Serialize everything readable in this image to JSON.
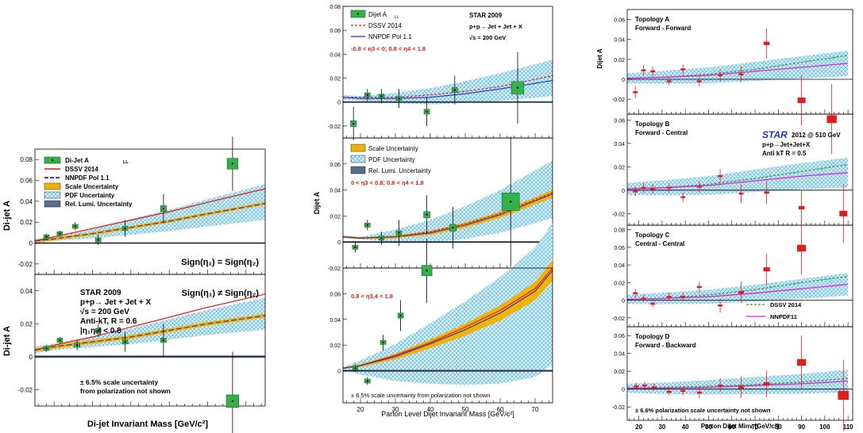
{
  "colors": {
    "dssv": "#e31a1c",
    "nnpdf": "#1f2fd0",
    "scale": "#f2b300",
    "pdf": "#9fd6ef",
    "relumi": "#5b6b8a",
    "data_green": "#34b24a",
    "data_red": "#e21d1d",
    "dssv_green": "#2f9f2f",
    "nnpdf_magenta": "#e020e0",
    "star_blue": "#2233cc"
  },
  "panel1": {
    "x_axis_label": "Di-jet Invariant Mass [GeV/c²]",
    "y_axis_label": "Di-jet A",
    "y_axis_sub": "LL",
    "legend": [
      "Di-Jet A",
      "DSSV 2014",
      "NNPDF Pol 1.1",
      "Scale Uncertainty",
      "PDF Uncertainty",
      "Rel. Lumi. Uncertainty"
    ],
    "legend_sub": "LL",
    "top_label": "Sign(η₁) = Sign(η₂)",
    "bottom_label": "Sign(η₁) ≠ Sign(η₂)",
    "star_lines": [
      "STAR 2009",
      "p+p→ Jet + Jet + X",
      "√s = 200 GeV",
      "Anti-kT, R = 0.6",
      "|η₁η₂| < 0.8"
    ],
    "note_lines": [
      "± 6.5% scale uncertainty",
      "from polarization not shown"
    ]
  },
  "panel2": {
    "x_axis_label": "Parton Level Dijet Invariant Mass [GeV/c²]",
    "y_axis_label": "Dijet A",
    "y_axis_sub": "LL",
    "legend_top": [
      "Dijet A",
      "DSSV 2014",
      "NNPDF Pol 1.1"
    ],
    "legend_top_sub": "LL",
    "star_lines": [
      "STAR 2009",
      "p+p→ Jet + Jet + X",
      "√s = 200 GeV"
    ],
    "eta_labels": [
      "-0.8 < η3 < 0; 0.8 < η4 < 1.8",
      "0 < η3 < 0.8; 0.8 < η4 < 1.8",
      "0.8 < η3,4 < 1.8"
    ],
    "legend_mid": [
      "Scale Uncertainty",
      "PDF Uncertainty",
      "Rel. Lumi. Uncertainty"
    ],
    "note": "± 6.5% scale uncertainty from polarization not shown"
  },
  "panel3": {
    "x_axis_label": "Parton Dijet Minv [GeV/c²]",
    "y_axis_label": "Dijet A",
    "y_axis_sub": "LL",
    "topologies": [
      [
        "Topology A",
        "Forward - Forward"
      ],
      [
        "Topology B",
        "Forward - Central"
      ],
      [
        "Topology C",
        "Central - Central"
      ],
      [
        "Topology D",
        "Forward - Backward"
      ]
    ],
    "star_logo": "STAR",
    "star_lines": [
      "2012 @ 510 GeV",
      "p+p→Jet+Jet+X",
      "Anti kT R = 0.5"
    ],
    "legend": [
      "DSSV 2014",
      "NNPDF11"
    ],
    "note": "± 6.6% polarization scale uncertainty not shown"
  },
  "chart_data": [
    {
      "type": "scatter",
      "title": "Di-jet ALL, Sign(η1) = Sign(η2)",
      "xlabel": "Di-jet Invariant Mass [GeV/c²]",
      "ylabel": "Di-jet ALL",
      "xlim": [
        15,
        75
      ],
      "ylim": [
        -0.03,
        0.09
      ],
      "xticks": [
        20,
        30,
        40,
        50,
        60,
        70
      ],
      "yticks": [
        -0.02,
        0,
        0.02,
        0.04,
        0.06,
        0.08
      ],
      "series": [
        {
          "name": "Di-Jet ALL",
          "x": [
            18,
            21.5,
            25.5,
            31.5,
            38.5,
            48.5,
            66.5
          ],
          "y": [
            0.006,
            0.009,
            0.016,
            0.003,
            0.014,
            0.033,
            0.076
          ],
          "yerr": [
            0.003,
            0.003,
            0.004,
            0.005,
            0.008,
            0.014,
            0.026
          ]
        },
        {
          "name": "DSSV 2014",
          "x": [
            15,
            20,
            30,
            40,
            50,
            60,
            75
          ],
          "y": [
            0.002,
            0.006,
            0.014,
            0.022,
            0.03,
            0.039,
            0.052
          ]
        },
        {
          "name": "NNPDF Pol 1.1",
          "x": [
            15,
            20,
            30,
            40,
            50,
            60,
            75
          ],
          "y": [
            0.002,
            0.004,
            0.009,
            0.015,
            0.021,
            0.028,
            0.038
          ]
        }
      ]
    },
    {
      "type": "scatter",
      "title": "Di-jet ALL, Sign(η1) ≠ Sign(η2)",
      "xlim": [
        15,
        75
      ],
      "ylim": [
        -0.03,
        0.05
      ],
      "yticks": [
        -0.02,
        0,
        0.02,
        0.04
      ],
      "series": [
        {
          "name": "Di-Jet ALL",
          "x": [
            18,
            21.5,
            26,
            31.5,
            38.5,
            48.5,
            66.5
          ],
          "y": [
            0.005,
            0.01,
            0.007,
            0.016,
            0.009,
            0.01,
            -0.027
          ],
          "yerr": [
            0.002,
            0.002,
            0.003,
            0.004,
            0.006,
            0.01,
            0.03
          ]
        },
        {
          "name": "DSSV 2014",
          "x": [
            15,
            20,
            30,
            40,
            50,
            60,
            75
          ],
          "y": [
            0.004,
            0.007,
            0.012,
            0.018,
            0.024,
            0.03,
            0.038
          ]
        },
        {
          "name": "NNPDF Pol 1.1",
          "x": [
            15,
            20,
            30,
            40,
            50,
            60,
            75
          ],
          "y": [
            0.004,
            0.006,
            0.009,
            0.012,
            0.016,
            0.02,
            0.025
          ]
        }
      ]
    },
    {
      "type": "scatter",
      "title": "-0.8 < η3 < 0; 0.8 < η4 < 1.8",
      "xlabel": "Parton Level Dijet Invariant Mass [GeV/c²]",
      "ylabel": "Dijet ALL",
      "xlim": [
        15,
        75
      ],
      "ylim": [
        -0.03,
        0.08
      ],
      "yticks": [
        -0.02,
        0,
        0.02,
        0.04,
        0.06,
        0.08
      ],
      "series": [
        {
          "name": "Dijet ALL",
          "x": [
            18,
            22,
            26,
            31,
            39,
            47,
            65
          ],
          "y": [
            -0.018,
            0.006,
            0.005,
            0.003,
            -0.008,
            0.01,
            0.012
          ],
          "yerr": [
            0.014,
            0.005,
            0.006,
            0.008,
            0.012,
            0.012,
            0.03
          ]
        },
        {
          "name": "DSSV 2014",
          "x": [
            15,
            20,
            30,
            40,
            50,
            60,
            75
          ],
          "y": [
            0.004,
            0.004,
            0.004,
            0.006,
            0.009,
            0.013,
            0.022
          ]
        },
        {
          "name": "NNPDF Pol 1.1",
          "x": [
            15,
            20,
            30,
            40,
            50,
            60,
            75
          ],
          "y": [
            0.004,
            0.003,
            0.003,
            0.004,
            0.007,
            0.011,
            0.018
          ]
        }
      ]
    },
    {
      "type": "scatter",
      "title": "0 < η3 < 0.8; 0.8 < η4 < 1.8",
      "xlim": [
        15,
        75
      ],
      "ylim": [
        -0.02,
        0.08
      ],
      "yticks": [
        -0.02,
        0,
        0.02,
        0.04,
        0.06
      ],
      "series": [
        {
          "name": "Dijet ALL",
          "x": [
            18.5,
            22,
            26,
            31,
            39,
            46.5,
            63
          ],
          "y": [
            -0.004,
            0.013,
            0.003,
            0.007,
            0.021,
            0.011,
            0.031
          ],
          "yerr": [
            0.004,
            0.004,
            0.005,
            0.01,
            0.015,
            0.016,
            0.05
          ]
        },
        {
          "name": "DSSV 2014",
          "x": [
            15,
            20,
            30,
            40,
            50,
            60,
            75
          ],
          "y": [
            0.004,
            0.003,
            0.004,
            0.008,
            0.014,
            0.022,
            0.038
          ]
        },
        {
          "name": "NNPDF Pol 1.1",
          "x": [
            15,
            20,
            30,
            40,
            50,
            60,
            75
          ],
          "y": [
            0.004,
            0.003,
            0.004,
            0.007,
            0.013,
            0.021,
            0.037
          ]
        }
      ]
    },
    {
      "type": "scatter",
      "title": "0.8 < η3,4 < 1.8",
      "xlim": [
        15,
        75
      ],
      "ylim": [
        -0.025,
        0.08
      ],
      "xticks": [
        20,
        30,
        40,
        50,
        60,
        70
      ],
      "yticks": [
        0,
        0.02,
        0.04,
        0.06
      ],
      "series": [
        {
          "name": "Dijet ALL",
          "x": [
            18.5,
            22,
            26.5,
            31.5,
            39
          ],
          "y": [
            0.002,
            -0.008,
            0.022,
            0.043,
            0.078
          ],
          "yerr": [
            0.003,
            0.003,
            0.006,
            0.012,
            0.025
          ]
        },
        {
          "name": "DSSV 2014",
          "x": [
            15,
            20,
            30,
            40,
            50,
            60,
            70,
            75
          ],
          "y": [
            0.002,
            0.004,
            0.012,
            0.022,
            0.034,
            0.047,
            0.064,
            0.08
          ]
        },
        {
          "name": "NNPDF Pol 1.1",
          "x": [
            15,
            20,
            30,
            40,
            50,
            60,
            70,
            75
          ],
          "y": [
            0.002,
            0.004,
            0.011,
            0.021,
            0.032,
            0.045,
            0.062,
            0.078
          ]
        }
      ]
    },
    {
      "type": "scatter",
      "title": "Topology A, Forward - Forward",
      "xlabel": "Parton Dijet Minv [GeV/c²]",
      "ylabel": "Dijet ALL",
      "xlim": [
        15,
        112
      ],
      "ylim": [
        -0.035,
        0.07
      ],
      "yticks": [
        -0.02,
        0,
        0.02,
        0.04,
        0.06
      ],
      "series": [
        {
          "name": "Data",
          "x": [
            18.5,
            22,
            26,
            33,
            39,
            46,
            55,
            64,
            75,
            90,
            103
          ],
          "y": [
            -0.013,
            0.009,
            0.008,
            -0.002,
            0.01,
            -0.002,
            0.004,
            0.005,
            0.036,
            -0.021,
            -0.04
          ],
          "yerr": [
            0.006,
            0.005,
            0.005,
            0.004,
            0.005,
            0.005,
            0.006,
            0.008,
            0.015,
            0.025,
            0.035
          ]
        },
        {
          "name": "DSSV 2014",
          "x": [
            15,
            30,
            50,
            70,
            90,
            110
          ],
          "y": [
            0.001,
            0.002,
            0.005,
            0.01,
            0.017,
            0.024
          ]
        },
        {
          "name": "NNPDF11",
          "x": [
            15,
            30,
            50,
            70,
            90,
            110
          ],
          "y": [
            0.001,
            0.002,
            0.004,
            0.008,
            0.012,
            0.016
          ]
        }
      ]
    },
    {
      "type": "scatter",
      "title": "Topology B, Forward - Central",
      "xlim": [
        15,
        112
      ],
      "ylim": [
        -0.03,
        0.065
      ],
      "yticks": [
        -0.02,
        0,
        0.02,
        0.04,
        0.06
      ],
      "series": [
        {
          "name": "Data",
          "x": [
            18.5,
            22,
            26,
            33,
            39,
            46,
            55,
            64,
            75,
            90,
            108
          ],
          "y": [
            -0.001,
            0.002,
            0.001,
            0.002,
            -0.006,
            0.003,
            0.012,
            -0.003,
            -0.002,
            -0.015,
            -0.02
          ],
          "yerr": [
            0.004,
            0.004,
            0.004,
            0.004,
            0.004,
            0.005,
            0.006,
            0.008,
            0.01,
            0.015,
            0.025
          ]
        },
        {
          "name": "DSSV 2014",
          "x": [
            15,
            30,
            50,
            70,
            90,
            110
          ],
          "y": [
            0.001,
            0.002,
            0.005,
            0.01,
            0.016,
            0.022
          ]
        },
        {
          "name": "NNPDF11",
          "x": [
            15,
            30,
            50,
            70,
            90,
            110
          ],
          "y": [
            0.001,
            0.002,
            0.004,
            0.008,
            0.012,
            0.015
          ]
        }
      ]
    },
    {
      "type": "scatter",
      "title": "Topology C, Central - Central",
      "xlim": [
        15,
        112
      ],
      "ylim": [
        -0.03,
        0.085
      ],
      "yticks": [
        -0.02,
        0,
        0.02,
        0.04,
        0.06,
        0.08
      ],
      "series": [
        {
          "name": "Data",
          "x": [
            18.5,
            22,
            26,
            33,
            39,
            46,
            55,
            64,
            75,
            90
          ],
          "y": [
            0.008,
            0.002,
            -0.004,
            0.004,
            0.004,
            0.015,
            -0.006,
            0.009,
            0.035,
            0.059
          ],
          "yerr": [
            0.005,
            0.004,
            0.004,
            0.005,
            0.005,
            0.006,
            0.008,
            0.012,
            0.018,
            0.03
          ]
        },
        {
          "name": "DSSV 2014",
          "x": [
            15,
            30,
            50,
            70,
            90,
            110
          ],
          "y": [
            0.001,
            0.002,
            0.006,
            0.012,
            0.02,
            0.027
          ]
        },
        {
          "name": "NNPDF11",
          "x": [
            15,
            30,
            50,
            70,
            90,
            110
          ],
          "y": [
            0.001,
            0.002,
            0.004,
            0.008,
            0.013,
            0.018
          ]
        }
      ]
    },
    {
      "type": "scatter",
      "title": "Topology D, Forward - Backward",
      "xlim": [
        15,
        112
      ],
      "ylim": [
        -0.035,
        0.07
      ],
      "xticks": [
        20,
        30,
        40,
        50,
        60,
        70,
        80,
        90,
        100,
        110
      ],
      "yticks": [
        -0.02,
        0,
        0.02,
        0.04,
        0.06
      ],
      "series": [
        {
          "name": "Data",
          "x": [
            19,
            22.5,
            26.5,
            33,
            39,
            46,
            55,
            64,
            75,
            90,
            108
          ],
          "y": [
            0.003,
            0.004,
            0.002,
            -0.003,
            -0.002,
            -0.004,
            0.004,
            0.002,
            0.006,
            0.03,
            -0.007
          ],
          "yerr": [
            0.004,
            0.004,
            0.004,
            0.004,
            0.005,
            0.006,
            0.008,
            0.012,
            0.015,
            0.03,
            0.04
          ]
        },
        {
          "name": "DSSV 2014",
          "x": [
            15,
            30,
            50,
            70,
            90,
            110
          ],
          "y": [
            0.001,
            0.002,
            0.003,
            0.005,
            0.008,
            0.012
          ]
        },
        {
          "name": "NNPDF11",
          "x": [
            15,
            30,
            50,
            70,
            90,
            110
          ],
          "y": [
            0.001,
            0.001,
            0.002,
            0.004,
            0.006,
            0.009
          ]
        }
      ]
    }
  ]
}
